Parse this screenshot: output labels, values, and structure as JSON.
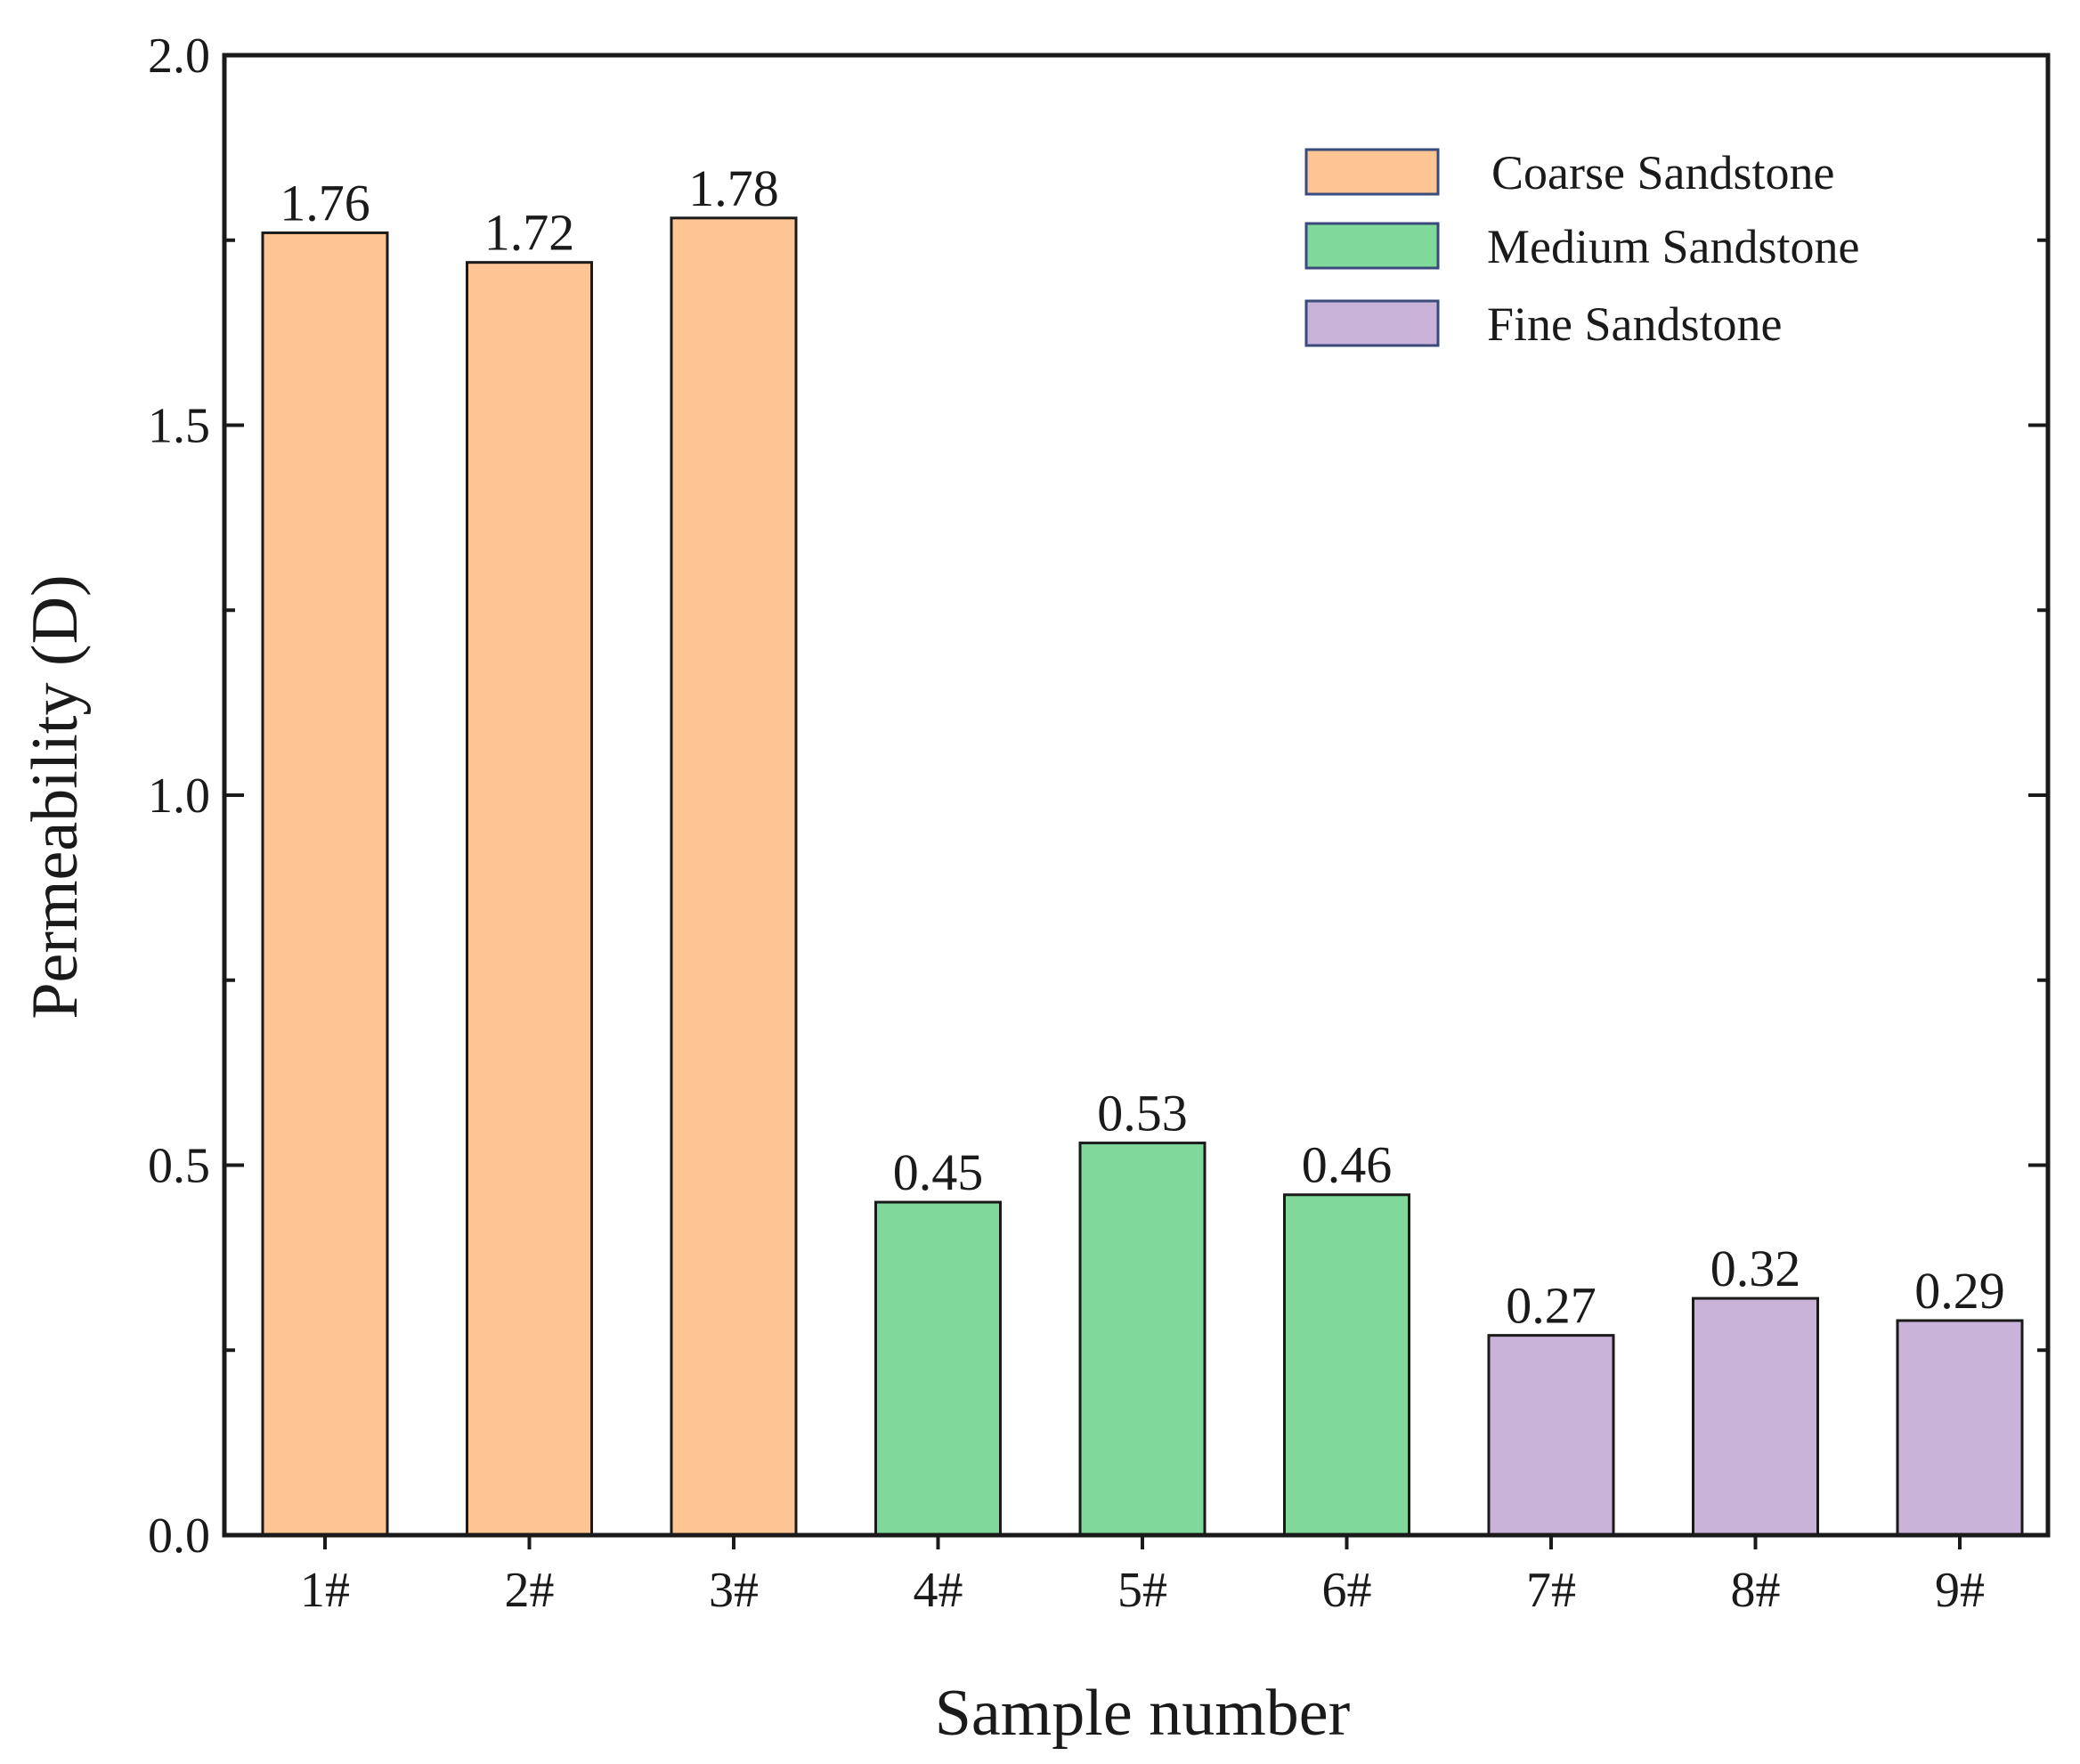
{
  "chart_data": {
    "type": "bar",
    "title": "",
    "xlabel": "Sample number",
    "ylabel": "Permeability (D)",
    "ylim": [
      0,
      2.0
    ],
    "yticks": [
      "0.0",
      "0.5",
      "1.0",
      "1.5",
      "2.0"
    ],
    "categories": [
      "1#",
      "2#",
      "3#",
      "4#",
      "5#",
      "6#",
      "7#",
      "8#",
      "9#"
    ],
    "values": [
      1.76,
      1.72,
      1.78,
      0.45,
      0.53,
      0.46,
      0.27,
      0.32,
      0.29
    ],
    "value_labels": [
      "1.76",
      "1.72",
      "1.78",
      "0.45",
      "0.53",
      "0.46",
      "0.27",
      "0.32",
      "0.29"
    ],
    "groups": [
      0,
      0,
      0,
      1,
      1,
      1,
      2,
      2,
      2
    ],
    "legend": [
      {
        "name": "Coarse Sandstone",
        "color": "#FDC593"
      },
      {
        "name": "Medium Sandstone",
        "color": "#80D99A"
      },
      {
        "name": "Fine Sandstone",
        "color": "#C9B3D9"
      }
    ],
    "legend_position": "top-right",
    "grid": false
  }
}
